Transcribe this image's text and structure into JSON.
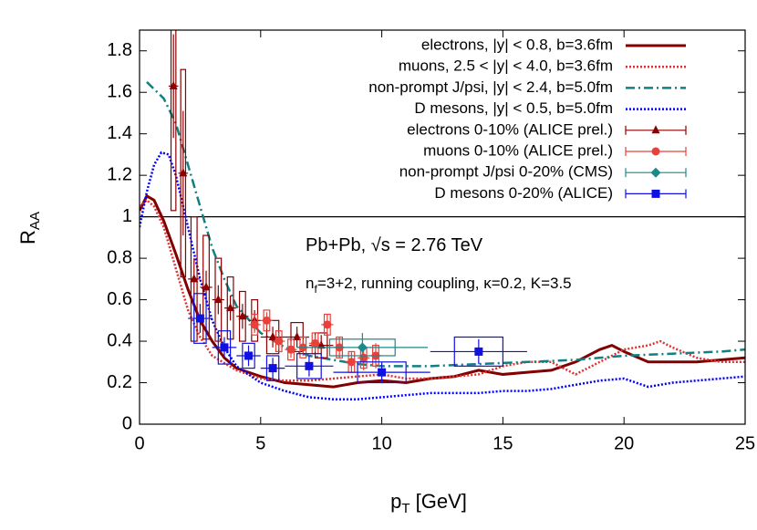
{
  "chart_data": {
    "type": "line",
    "xlabel": [
      "p",
      "T",
      " [GeV]"
    ],
    "ylabel": [
      "R",
      "AA"
    ],
    "annotations": [
      [
        "Pb+Pb, √s = 2.76 TeV"
      ],
      [
        "n",
        "f",
        "=3+2, running coupling, κ=0.2, K=3.5"
      ]
    ],
    "xlim": [
      0,
      25
    ],
    "ylim": [
      0,
      1.9
    ],
    "xticks": [
      0,
      5,
      10,
      15,
      20,
      25
    ],
    "yticks": [
      0,
      0.2,
      0.4,
      0.6,
      0.8,
      1,
      1.2,
      1.4,
      1.6,
      1.8
    ],
    "hline": 1,
    "legend": "upper right",
    "series": [
      {
        "name": "electrons, |y| < 0.8, b=3.6fm",
        "color": "#800000",
        "style": "solid",
        "x": [
          0,
          0.3,
          0.6,
          1,
          1.5,
          2,
          2.5,
          3,
          3.5,
          4,
          5,
          6,
          7,
          8,
          9,
          10,
          11,
          12,
          13,
          14,
          15,
          16,
          17,
          18,
          19,
          19.5,
          20,
          21,
          22,
          23,
          24,
          25
        ],
        "values": [
          1.03,
          1.1,
          1.08,
          0.98,
          0.82,
          0.65,
          0.5,
          0.4,
          0.32,
          0.27,
          0.23,
          0.2,
          0.19,
          0.18,
          0.2,
          0.21,
          0.2,
          0.22,
          0.23,
          0.26,
          0.24,
          0.25,
          0.26,
          0.3,
          0.36,
          0.38,
          0.35,
          0.3,
          0.3,
          0.3,
          0.31,
          0.32
        ]
      },
      {
        "name": "muons, 2.5 < |y| < 4.0, b=3.6fm",
        "color": "#e03030",
        "style": "dotted",
        "x": [
          0,
          0.3,
          0.6,
          1,
          1.5,
          2,
          2.5,
          3,
          4,
          5,
          6,
          7,
          8,
          9,
          10,
          11,
          12,
          13,
          14,
          15,
          16,
          17,
          18,
          19,
          20,
          21,
          21.5,
          22,
          23,
          24,
          25
        ],
        "values": [
          1.05,
          1.08,
          1.05,
          0.95,
          0.75,
          0.55,
          0.42,
          0.33,
          0.26,
          0.22,
          0.21,
          0.21,
          0.22,
          0.23,
          0.24,
          0.22,
          0.22,
          0.23,
          0.24,
          0.28,
          0.3,
          0.3,
          0.24,
          0.3,
          0.36,
          0.38,
          0.4,
          0.37,
          0.32,
          0.3,
          0.3
        ]
      },
      {
        "name": "non-prompt J/psi, |y| < 2.4, b=5.0fm",
        "color": "#108080",
        "style": "dashdot",
        "x": [
          0.3,
          1,
          1.5,
          2,
          2.5,
          3,
          3.5,
          4,
          5,
          6,
          7,
          8,
          9,
          10,
          12,
          14,
          16,
          18,
          20,
          22,
          24,
          25
        ],
        "values": [
          1.65,
          1.57,
          1.45,
          1.25,
          1.05,
          0.85,
          0.7,
          0.57,
          0.44,
          0.37,
          0.33,
          0.31,
          0.29,
          0.28,
          0.28,
          0.29,
          0.3,
          0.31,
          0.33,
          0.34,
          0.35,
          0.36
        ]
      },
      {
        "name": "D mesons, |y| < 0.5, b=5.0fm",
        "color": "#0000ff",
        "style": "dotted",
        "x": [
          0,
          0.3,
          0.6,
          0.9,
          1.2,
          1.5,
          2,
          2.5,
          3,
          3.5,
          4,
          5,
          6,
          7,
          8,
          9,
          10,
          11,
          12,
          13,
          14,
          15,
          16,
          17,
          18,
          19,
          20,
          21,
          22,
          23,
          24,
          25
        ],
        "values": [
          0.95,
          1.12,
          1.25,
          1.31,
          1.3,
          1.2,
          0.95,
          0.7,
          0.5,
          0.37,
          0.28,
          0.2,
          0.16,
          0.13,
          0.12,
          0.12,
          0.13,
          0.14,
          0.15,
          0.15,
          0.15,
          0.16,
          0.16,
          0.17,
          0.19,
          0.21,
          0.22,
          0.18,
          0.2,
          0.21,
          0.22,
          0.23
        ]
      }
    ],
    "data_series": [
      {
        "name": "electrons 0-10% (ALICE prel.)",
        "color": "#8b0000",
        "marker": "triangle",
        "x": [
          1.4,
          1.8,
          2.25,
          2.75,
          3.25,
          3.75,
          4.25,
          4.75,
          5.5,
          6.5,
          7.5
        ],
        "values": [
          1.63,
          1.21,
          0.7,
          0.66,
          0.6,
          0.56,
          0.52,
          0.5,
          0.42,
          0.42,
          0.38
        ],
        "errors": [
          0.25,
          0.3,
          0.1,
          0.08,
          0.07,
          0.06,
          0.06,
          0.05,
          0.05,
          0.05,
          0.05
        ],
        "xerrors": [
          0.2,
          0.2,
          0.25,
          0.25,
          0.25,
          0.25,
          0.25,
          0.25,
          0.5,
          0.5,
          0.5
        ],
        "sys": [
          0.6,
          0.5,
          0.3,
          0.25,
          0.2,
          0.15,
          0.12,
          0.1,
          0.08,
          0.07,
          0.06
        ]
      },
      {
        "name": "muons 0-10% (ALICE prel.)",
        "color": "#e8403a",
        "marker": "circle",
        "x": [
          4.75,
          5.25,
          5.75,
          6.25,
          6.75,
          7.25,
          7.75,
          8.25,
          8.75,
          9.25,
          9.75
        ],
        "values": [
          0.48,
          0.5,
          0.4,
          0.36,
          0.37,
          0.39,
          0.48,
          0.37,
          0.3,
          0.32,
          0.33
        ],
        "errors": [
          0.04,
          0.04,
          0.04,
          0.04,
          0.04,
          0.04,
          0.05,
          0.05,
          0.05,
          0.06,
          0.06
        ],
        "xerrors": [
          0.25,
          0.25,
          0.25,
          0.25,
          0.25,
          0.25,
          0.25,
          0.25,
          0.25,
          0.25,
          0.25
        ],
        "sys": [
          0.05,
          0.05,
          0.05,
          0.05,
          0.05,
          0.05,
          0.05,
          0.05,
          0.05,
          0.05,
          0.05
        ]
      },
      {
        "name": "non-prompt J/psi 0-20% (CMS)",
        "color": "#1a8a8a",
        "marker": "diamond",
        "x": [
          9.2
        ],
        "values": [
          0.37
        ],
        "errors": [
          0.07
        ],
        "xerrors": [
          2.7
        ],
        "sys": [
          0.04
        ]
      },
      {
        "name": "D mesons 0-20% (ALICE)",
        "color": "#1010e0",
        "marker": "square",
        "x": [
          2.5,
          3.5,
          4.5,
          5.5,
          7,
          10,
          14
        ],
        "values": [
          0.51,
          0.37,
          0.33,
          0.27,
          0.28,
          0.25,
          0.35
        ],
        "errors": [
          0.07,
          0.05,
          0.05,
          0.05,
          0.05,
          0.05,
          0.06
        ],
        "xerrors": [
          0.5,
          0.5,
          0.5,
          0.5,
          1,
          2,
          2
        ],
        "sys": [
          0.12,
          0.08,
          0.06,
          0.06,
          0.06,
          0.05,
          0.07
        ]
      }
    ]
  }
}
